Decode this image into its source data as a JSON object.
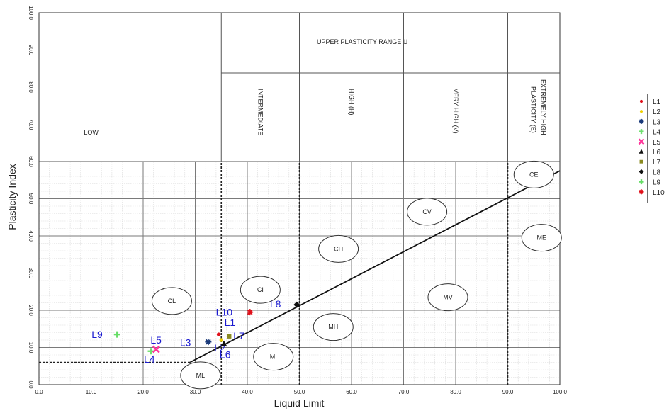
{
  "chart_data": {
    "type": "scatter",
    "xlabel": "Liquid Limit",
    "ylabel": "Plasticity Index",
    "xlim": [
      0,
      100
    ],
    "ylim": [
      0,
      100
    ],
    "x_ticks": [
      "0.0",
      "10.0",
      "20.0",
      "30.0",
      "40.0",
      "50.0",
      "60.0",
      "70.0",
      "80.0",
      "90.0",
      "100.0"
    ],
    "y_ticks": [
      "0.0",
      "10.0",
      "20.0",
      "30.0",
      "40.0",
      "50.0",
      "60.0",
      "70.0",
      "80.0",
      "90.0",
      "100.0"
    ],
    "grid": true,
    "legend_position": "right",
    "series": [
      {
        "name": "L1",
        "x": 34.5,
        "y": 13.5,
        "color": "#e0101a",
        "marker": "dot"
      },
      {
        "name": "L2",
        "x": 35.0,
        "y": 12.0,
        "color": "#f0d000",
        "marker": "dot"
      },
      {
        "name": "L3",
        "x": 32.5,
        "y": 11.5,
        "color": "#1a3a7a",
        "marker": "star"
      },
      {
        "name": "L4",
        "x": 21.5,
        "y": 9.0,
        "color": "#70e070",
        "marker": "plus"
      },
      {
        "name": "L5",
        "x": 22.5,
        "y": 9.5,
        "color": "#ff3399",
        "marker": "x"
      },
      {
        "name": "L6",
        "x": 35.5,
        "y": 11.0,
        "color": "#111111",
        "marker": "triangle"
      },
      {
        "name": "L7",
        "x": 36.5,
        "y": 13.0,
        "color": "#8a8a20",
        "marker": "square"
      },
      {
        "name": "L8",
        "x": 49.5,
        "y": 21.5,
        "color": "#111111",
        "marker": "diamond"
      },
      {
        "name": "L9",
        "x": 15.0,
        "y": 13.5,
        "color": "#66dd66",
        "marker": "plus"
      },
      {
        "name": "L10",
        "x": 40.5,
        "y": 19.5,
        "color": "#e0101a",
        "marker": "star"
      }
    ],
    "a_line": {
      "points": [
        [
          29,
          6
        ],
        [
          100,
          57.5
        ]
      ]
    },
    "dashed_lines": [
      {
        "from": [
          0,
          6
        ],
        "to": [
          29,
          6
        ]
      },
      {
        "from": [
          35,
          0
        ],
        "to": [
          35,
          60
        ]
      },
      {
        "from": [
          50,
          0
        ],
        "to": [
          50,
          60
        ]
      },
      {
        "from": [
          90,
          0
        ],
        "to": [
          90,
          60
        ]
      }
    ],
    "plasticity_bands": {
      "upper_label": "UPPER PLASTICITY RANGE U",
      "bands": [
        {
          "label": "LOW",
          "from": 0,
          "to": 35,
          "vertical": false
        },
        {
          "label": "INTERMEDIATE",
          "from": 35,
          "to": 50,
          "vertical": true
        },
        {
          "label": "HIGH (H)",
          "from": 50,
          "to": 70,
          "vertical": true
        },
        {
          "label": "VERY HIGH (V)",
          "from": 70,
          "to": 90,
          "vertical": true
        },
        {
          "label": "EXTREMELY HIGH PLASTICITY (E)",
          "from": 90,
          "to": 100,
          "vertical": true
        }
      ]
    },
    "zones": [
      {
        "label": "CL",
        "x": 25.5,
        "y": 22.5
      },
      {
        "label": "CI",
        "x": 42.5,
        "y": 25.5
      },
      {
        "label": "CH",
        "x": 57.5,
        "y": 36.5
      },
      {
        "label": "CV",
        "x": 74.5,
        "y": 46.5
      },
      {
        "label": "CE",
        "x": 95.0,
        "y": 56.5
      },
      {
        "label": "ME",
        "x": 96.5,
        "y": 39.5
      },
      {
        "label": "MV",
        "x": 78.5,
        "y": 23.5
      },
      {
        "label": "MH",
        "x": 56.5,
        "y": 15.5
      },
      {
        "label": "MI",
        "x": 45.0,
        "y": 7.5
      },
      {
        "label": "ML",
        "x": 31.0,
        "y": 2.5
      }
    ]
  }
}
